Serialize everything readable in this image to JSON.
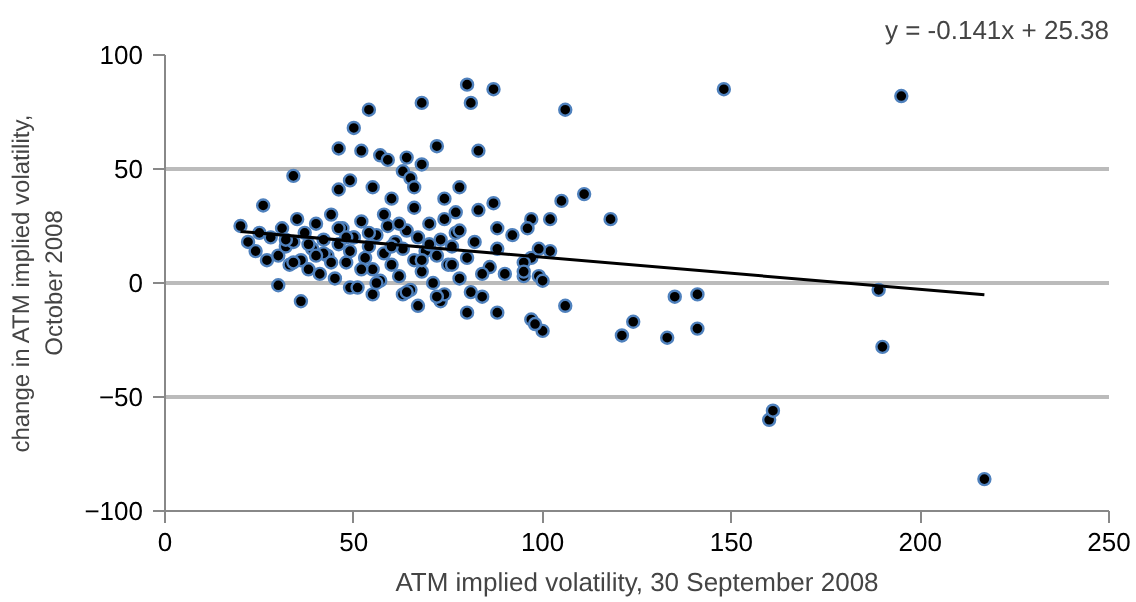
{
  "chart_data": {
    "type": "scatter",
    "xlabel": "ATM implied volatility, 30 September 2008",
    "ylabel": "change in ATM implied volatility, October 2008",
    "annotations": [
      "y = -0.141x + 25.38"
    ],
    "xlim": [
      0,
      250
    ],
    "ylim": [
      -100,
      100
    ],
    "xticks": [
      0,
      50,
      100,
      150,
      200,
      250
    ],
    "yticks": [
      -100,
      -50,
      0,
      50,
      100
    ],
    "grid": "y",
    "series": [
      {
        "color": "#4f81bd",
        "marker": "circle",
        "x": [
          148,
          195,
          106,
          111,
          105,
          118,
          102,
          97,
          96,
          102,
          99,
          97,
          95,
          95,
          95,
          99,
          100,
          189,
          190,
          135,
          141,
          106,
          121,
          124,
          133,
          141,
          97,
          100,
          98,
          160,
          161,
          217,
          87,
          80,
          81,
          68,
          54,
          50,
          46,
          52,
          57,
          59,
          64,
          68,
          72,
          83,
          34,
          63,
          65,
          66,
          46,
          49,
          55,
          60,
          74,
          78,
          83,
          87,
          88,
          77,
          67,
          80,
          88,
          73,
          81,
          63,
          55,
          49,
          20,
          22,
          24,
          25,
          27,
          28,
          30,
          31,
          32,
          33,
          34,
          35,
          36,
          37,
          38,
          39,
          40,
          41,
          42,
          43,
          44,
          45,
          46,
          47,
          48,
          49,
          50,
          51,
          52,
          53,
          54,
          55,
          56,
          57,
          58,
          59,
          60,
          61,
          62,
          63,
          64,
          65,
          66,
          67,
          68,
          69,
          70,
          71,
          72,
          73,
          74,
          75,
          76,
          77,
          78,
          80,
          82,
          84,
          86,
          88,
          90,
          92,
          30,
          34,
          38,
          42,
          46,
          50,
          54,
          58,
          62,
          66,
          70,
          74,
          78,
          26,
          32,
          40,
          44,
          52,
          56,
          64,
          72,
          36,
          48,
          60,
          68,
          76,
          84
        ],
        "values": [
          85,
          82,
          76,
          39,
          36,
          28,
          28,
          28,
          24,
          14,
          15,
          11,
          9,
          3,
          5,
          3,
          1,
          -3,
          -28,
          -6,
          -5,
          -10,
          -23,
          -17,
          -24,
          -20,
          -16,
          -21,
          -18,
          -60,
          -56,
          -86,
          85,
          87,
          79,
          79,
          76,
          68,
          59,
          58,
          56,
          54,
          55,
          52,
          60,
          58,
          47,
          49,
          46,
          42,
          41,
          45,
          42,
          37,
          37,
          42,
          32,
          35,
          24,
          31,
          -10,
          -13,
          -13,
          -8,
          -4,
          -5,
          -5,
          -2,
          25,
          18,
          14,
          22,
          10,
          20,
          12,
          24,
          16,
          8,
          18,
          28,
          10,
          22,
          6,
          15,
          26,
          4,
          19,
          12,
          30,
          2,
          17,
          24,
          9,
          14,
          20,
          -2,
          27,
          11,
          16,
          6,
          21,
          1,
          13,
          25,
          8,
          18,
          3,
          15,
          23,
          -3,
          10,
          20,
          5,
          14,
          26,
          0,
          12,
          19,
          -5,
          8,
          16,
          22,
          2,
          11,
          18,
          -6,
          7,
          15,
          4,
          21,
          -1,
          9,
          17,
          13,
          24,
          20,
          22,
          30,
          26,
          33,
          17,
          28,
          23,
          34,
          19,
          12,
          9,
          6,
          0,
          -4,
          -6,
          -8,
          20,
          16,
          10,
          8,
          4
        ]
      },
      {
        "type": "line",
        "color": "#000000",
        "marker": "none",
        "line_style": "solid",
        "x": [
          20,
          217
        ],
        "values": [
          22.6,
          -5.2
        ]
      }
    ]
  }
}
